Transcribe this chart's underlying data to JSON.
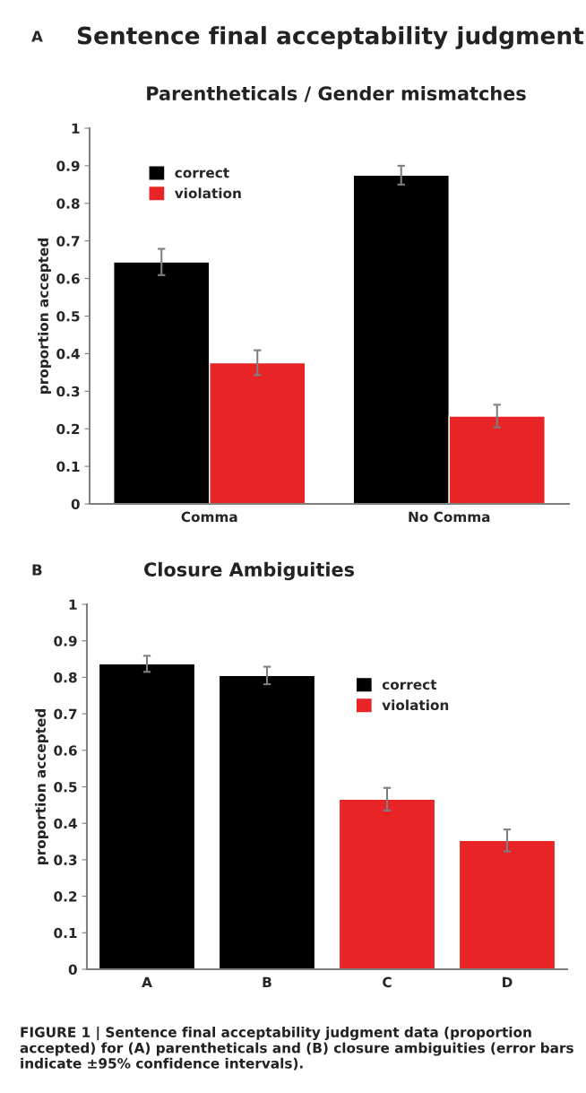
{
  "chart_data": [
    {
      "type": "bar",
      "title": "Sentence final acceptability judgment",
      "subtitle": "Parentheticals / Gender mismatches",
      "ylabel": "proportion accepted",
      "annotations": [
        "A"
      ],
      "categories": [
        "Comma",
        "No Comma"
      ],
      "series": [
        {
          "name": "correct",
          "color": "#000000",
          "values": [
            0.644,
            0.875
          ],
          "errors": [
            0.035,
            0.025
          ]
        },
        {
          "name": "violation",
          "color": "#e82427",
          "values": [
            0.376,
            0.234
          ],
          "errors": [
            0.033,
            0.03
          ]
        }
      ],
      "ylim": [
        0,
        1
      ],
      "yticks": [
        0,
        0.1,
        0.2,
        0.3,
        0.4,
        0.5,
        0.6,
        0.7,
        0.8,
        0.9,
        1
      ],
      "grid": false,
      "legend": "top left"
    },
    {
      "type": "bar",
      "title": "Closure Ambiguities",
      "ylabel": "proportion accepted",
      "annotations": [
        "B",
        "FIGURE 1 | Sentence final acceptability judgment data (proportion accepted) for (A) parentheticals and (B) closure ambiguities (error bars indicate ±95% confidence intervals)."
      ],
      "categories": [
        "A",
        "B",
        "C",
        "D"
      ],
      "series": [
        {
          "name": "correct",
          "color": "#000000",
          "values": [
            0.837,
            0.805,
            null,
            null
          ],
          "errors": [
            0.022,
            0.024,
            null,
            null
          ]
        },
        {
          "name": "violation",
          "color": "#e82427",
          "values": [
            null,
            null,
            0.466,
            0.353
          ],
          "errors": [
            null,
            null,
            0.031,
            0.03
          ]
        }
      ],
      "ylim": [
        0,
        1
      ],
      "yticks": [
        0,
        0.1,
        0.2,
        0.3,
        0.4,
        0.5,
        0.6,
        0.7,
        0.8,
        0.9,
        1
      ],
      "grid": false,
      "legend": "top right"
    }
  ]
}
